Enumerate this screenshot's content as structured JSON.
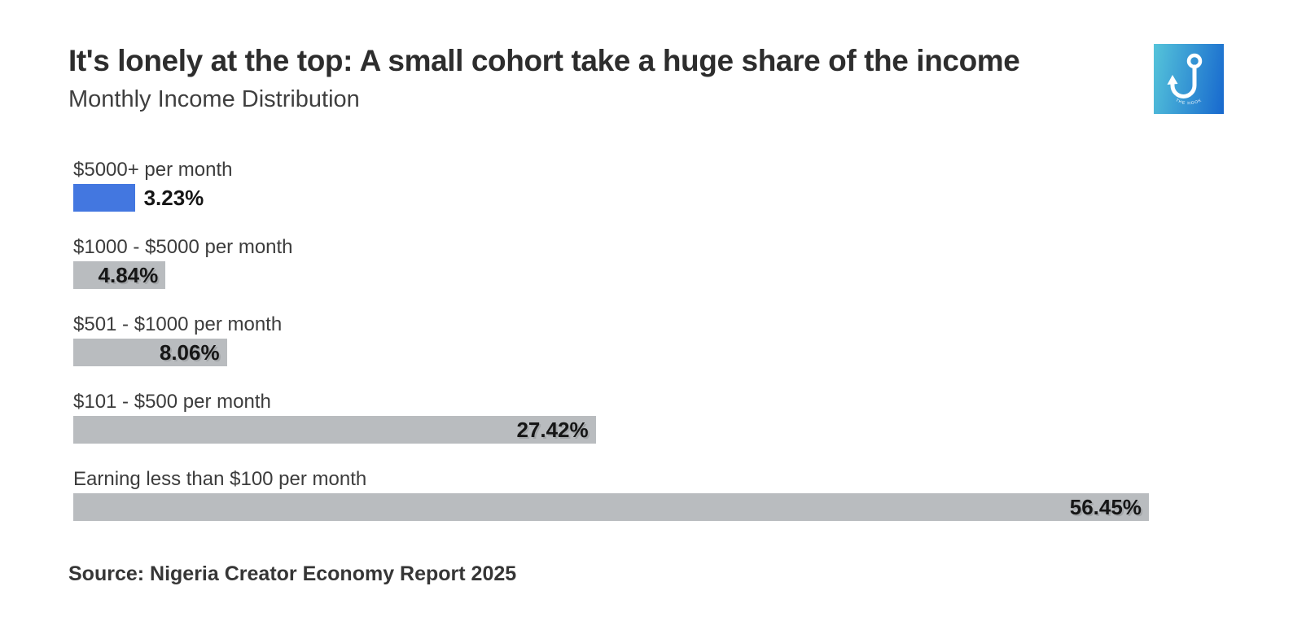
{
  "header": {
    "title": "It's lonely at the top: A small cohort take a huge share of the income",
    "subtitle": "Monthly Income Distribution",
    "logo_text": "THE HOOK"
  },
  "chart_data": {
    "type": "bar",
    "orientation": "horizontal",
    "title": "It's lonely at the top: A small cohort take a huge share of the income",
    "subtitle": "Monthly Income Distribution",
    "categories": [
      "$5000+ per month",
      "$1000 - $5000 per month",
      "$501 - $1000 per month",
      "$101 - $500 per month",
      "Earning less than $100 per month"
    ],
    "values": [
      3.23,
      4.84,
      8.06,
      27.42,
      56.45
    ],
    "value_labels": [
      "3.23%",
      "4.84%",
      "8.06%",
      "27.42%",
      "56.45%"
    ],
    "value_suffix": "%",
    "xlim": [
      0,
      60
    ],
    "grid": false,
    "legend": "none",
    "highlight_index": 0,
    "bar_colors": [
      "#4377e0",
      "#b9bcbf",
      "#b9bcbf",
      "#b9bcbf",
      "#b9bcbf"
    ]
  },
  "footer": {
    "source": "Source: Nigeria Creator Economy Report 2025"
  },
  "colors": {
    "accent_blue": "#4377e0",
    "bar_gray": "#b9bcbf",
    "logo_gradient_start": "#55c4da",
    "logo_gradient_end": "#1768ce",
    "title_text": "#2d2d2d",
    "body_text": "#3c3c3c"
  }
}
